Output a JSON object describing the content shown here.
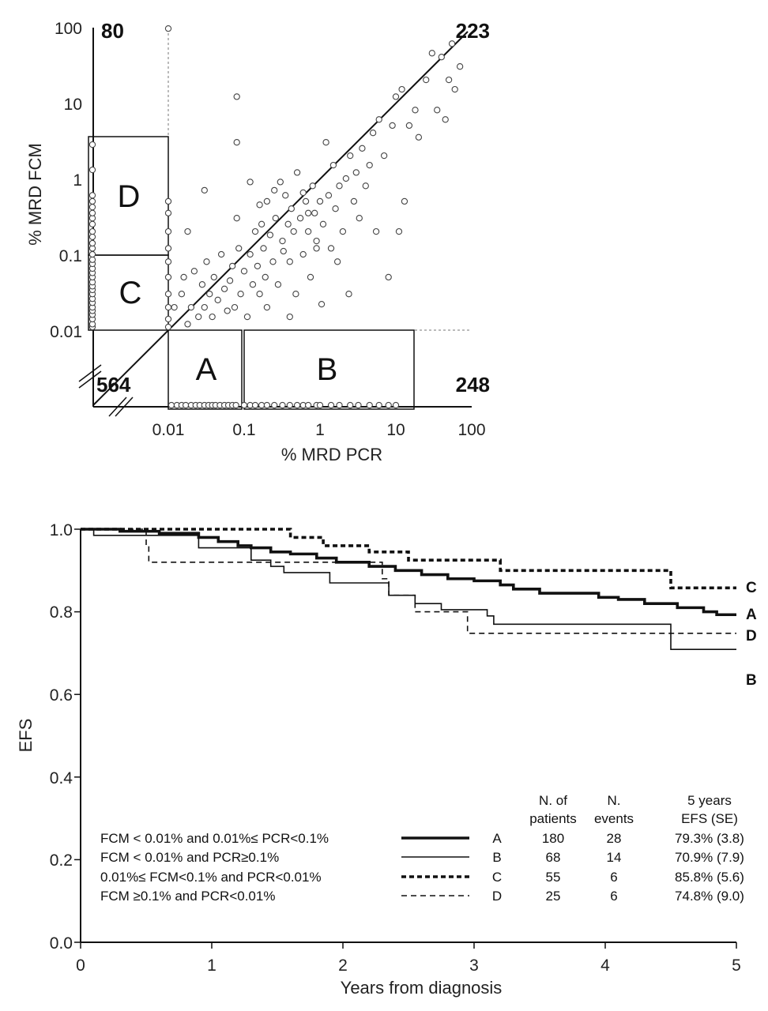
{
  "chart_data": [
    {
      "type": "scatter",
      "xlabel": "% MRD PCR",
      "ylabel": "% MRD FCM",
      "x_scale": "log",
      "y_scale": "log",
      "xlim": [
        0.01,
        100
      ],
      "ylim": [
        0.01,
        100
      ],
      "x_ticks": [
        "0.01",
        "0.1",
        "1",
        "10",
        "100"
      ],
      "y_ticks": [
        "100",
        "10",
        "1",
        "0.1",
        "0.01"
      ],
      "quadrant_counts": {
        "top_left": "80",
        "top_right": "223",
        "bottom_left": "564",
        "bottom_right": "248"
      },
      "boxes": [
        "D",
        "C",
        "A",
        "B"
      ],
      "points": [
        [
          0.012,
          0.02
        ],
        [
          0.015,
          0.03
        ],
        [
          0.016,
          0.05
        ],
        [
          0.018,
          0.012
        ],
        [
          0.02,
          0.02
        ],
        [
          0.022,
          0.06
        ],
        [
          0.025,
          0.015
        ],
        [
          0.028,
          0.04
        ],
        [
          0.03,
          0.02
        ],
        [
          0.032,
          0.08
        ],
        [
          0.035,
          0.03
        ],
        [
          0.038,
          0.015
        ],
        [
          0.04,
          0.05
        ],
        [
          0.045,
          0.025
        ],
        [
          0.05,
          0.1
        ],
        [
          0.055,
          0.035
        ],
        [
          0.06,
          0.018
        ],
        [
          0.065,
          0.045
        ],
        [
          0.07,
          0.07
        ],
        [
          0.075,
          0.02
        ],
        [
          0.08,
          0.3
        ],
        [
          0.085,
          0.12
        ],
        [
          0.09,
          0.03
        ],
        [
          0.1,
          0.06
        ],
        [
          0.11,
          0.015
        ],
        [
          0.12,
          0.1
        ],
        [
          0.13,
          0.04
        ],
        [
          0.14,
          0.2
        ],
        [
          0.15,
          0.07
        ],
        [
          0.16,
          0.03
        ],
        [
          0.17,
          0.25
        ],
        [
          0.18,
          0.12
        ],
        [
          0.19,
          0.05
        ],
        [
          0.2,
          0.5
        ],
        [
          0.22,
          0.18
        ],
        [
          0.24,
          0.08
        ],
        [
          0.26,
          0.3
        ],
        [
          0.28,
          0.04
        ],
        [
          0.3,
          0.9
        ],
        [
          0.32,
          0.15
        ],
        [
          0.35,
          0.6
        ],
        [
          0.38,
          0.25
        ],
        [
          0.4,
          0.08
        ],
        [
          0.42,
          0.4
        ],
        [
          0.45,
          0.2
        ],
        [
          0.48,
          0.03
        ],
        [
          0.5,
          1.2
        ],
        [
          0.55,
          0.3
        ],
        [
          0.6,
          0.1
        ],
        [
          0.65,
          0.5
        ],
        [
          0.7,
          0.2
        ],
        [
          0.75,
          0.05
        ],
        [
          0.8,
          0.8
        ],
        [
          0.85,
          0.35
        ],
        [
          0.9,
          0.15
        ],
        [
          1.0,
          0.5
        ],
        [
          1.1,
          0.25
        ],
        [
          1.2,
          3.0
        ],
        [
          1.3,
          0.6
        ],
        [
          1.4,
          0.12
        ],
        [
          1.5,
          1.5
        ],
        [
          1.6,
          0.4
        ],
        [
          1.8,
          0.8
        ],
        [
          2.0,
          0.2
        ],
        [
          2.2,
          1.0
        ],
        [
          2.5,
          2.0
        ],
        [
          2.8,
          0.5
        ],
        [
          3.0,
          1.2
        ],
        [
          3.3,
          0.3
        ],
        [
          3.6,
          2.5
        ],
        [
          4.0,
          0.8
        ],
        [
          4.5,
          1.5
        ],
        [
          5.0,
          4.0
        ],
        [
          5.5,
          0.2
        ],
        [
          6.0,
          6.0
        ],
        [
          7.0,
          2.0
        ],
        [
          8.0,
          0.05
        ],
        [
          9.0,
          5.0
        ],
        [
          10.0,
          12.0
        ],
        [
          11.0,
          0.2
        ],
        [
          12.0,
          15.0
        ],
        [
          13.0,
          0.5
        ],
        [
          15.0,
          5.0
        ],
        [
          18.0,
          8.0
        ],
        [
          20.0,
          3.5
        ],
        [
          25.0,
          20.0
        ],
        [
          30.0,
          45.0
        ],
        [
          35.0,
          8.0
        ],
        [
          40.0,
          40.0
        ],
        [
          45.0,
          6.0
        ],
        [
          50.0,
          20.0
        ],
        [
          55.0,
          60.0
        ],
        [
          60.0,
          15.0
        ],
        [
          70.0,
          30.0
        ],
        [
          0.08,
          12.0
        ],
        [
          0.08,
          3.0
        ],
        [
          0.03,
          0.7
        ],
        [
          0.018,
          0.2
        ],
        [
          0.4,
          0.015
        ],
        [
          0.2,
          0.02
        ],
        [
          0.12,
          0.9
        ],
        [
          0.25,
          0.7
        ],
        [
          0.6,
          0.65
        ],
        [
          1.7,
          0.08
        ],
        [
          2.4,
          0.03
        ],
        [
          0.9,
          0.12
        ],
        [
          0.7,
          0.35
        ],
        [
          0.33,
          0.11
        ],
        [
          1.05,
          0.022
        ],
        [
          0.16,
          0.45
        ]
      ],
      "points_on_x_axis": [
        0.011,
        0.013,
        0.015,
        0.017,
        0.02,
        0.023,
        0.026,
        0.03,
        0.034,
        0.038,
        0.042,
        0.048,
        0.055,
        0.062,
        0.07,
        0.078,
        0.1,
        0.12,
        0.14,
        0.17,
        0.2,
        0.25,
        0.32,
        0.4,
        0.5,
        0.6,
        0.7,
        0.9,
        1.0,
        1.4,
        1.8,
        2.5,
        3.2,
        4.5,
        6.0,
        8.0,
        10.0
      ],
      "points_on_y_axis": [
        0.011,
        0.012,
        0.014,
        0.016,
        0.018,
        0.02,
        0.023,
        0.026,
        0.03,
        0.034,
        0.038,
        0.043,
        0.05,
        0.057,
        0.065,
        0.075,
        0.085,
        0.1,
        0.12,
        0.14,
        0.17,
        0.2,
        0.25,
        0.3,
        0.35,
        0.42,
        0.5,
        0.6,
        1.3,
        2.8
      ],
      "points_at_fcm_cutoff": [
        0.011,
        0.014,
        0.02,
        0.03,
        0.05,
        0.08,
        0.12,
        0.2,
        0.35,
        0.5,
        95.0
      ]
    },
    {
      "type": "line",
      "title": "",
      "xlabel": "Years from diagnosis",
      "ylabel": "EFS",
      "xlim": [
        0,
        5
      ],
      "ylim": [
        0,
        1
      ],
      "x_ticks": [
        "0",
        "1",
        "2",
        "3",
        "4",
        "5"
      ],
      "y_ticks": [
        "1.0",
        "0.8",
        "0.6",
        "0.4",
        "0.2",
        "0.0"
      ],
      "series": [
        {
          "name": "A",
          "style": "thick-solid",
          "steps": [
            [
              0,
              1.0
            ],
            [
              0.3,
              0.995
            ],
            [
              0.6,
              0.99
            ],
            [
              0.9,
              0.98
            ],
            [
              1.05,
              0.97
            ],
            [
              1.2,
              0.96
            ],
            [
              1.3,
              0.955
            ],
            [
              1.45,
              0.945
            ],
            [
              1.6,
              0.94
            ],
            [
              1.8,
              0.93
            ],
            [
              1.95,
              0.92
            ],
            [
              2.2,
              0.91
            ],
            [
              2.4,
              0.9
            ],
            [
              2.6,
              0.89
            ],
            [
              2.8,
              0.88
            ],
            [
              3.0,
              0.875
            ],
            [
              3.2,
              0.865
            ],
            [
              3.3,
              0.855
            ],
            [
              3.5,
              0.845
            ],
            [
              3.8,
              0.845
            ],
            [
              3.95,
              0.835
            ],
            [
              4.1,
              0.83
            ],
            [
              4.3,
              0.82
            ],
            [
              4.55,
              0.81
            ],
            [
              4.75,
              0.8
            ],
            [
              4.85,
              0.793
            ],
            [
              5.0,
              0.793
            ]
          ]
        },
        {
          "name": "B",
          "style": "solid",
          "steps": [
            [
              0,
              1.0
            ],
            [
              0.1,
              0.985
            ],
            [
              0.85,
              0.985
            ],
            [
              0.9,
              0.955
            ],
            [
              1.25,
              0.955
            ],
            [
              1.3,
              0.925
            ],
            [
              1.45,
              0.91
            ],
            [
              1.55,
              0.895
            ],
            [
              1.85,
              0.895
            ],
            [
              1.9,
              0.87
            ],
            [
              2.3,
              0.87
            ],
            [
              2.35,
              0.84
            ],
            [
              2.55,
              0.82
            ],
            [
              2.7,
              0.82
            ],
            [
              2.75,
              0.805
            ],
            [
              3.05,
              0.805
            ],
            [
              3.1,
              0.79
            ],
            [
              3.15,
              0.77
            ],
            [
              4.5,
              0.77
            ],
            [
              4.5,
              0.709
            ],
            [
              5.0,
              0.709
            ]
          ]
        },
        {
          "name": "C",
          "style": "thick-dotted",
          "steps": [
            [
              0,
              1.0
            ],
            [
              1.6,
              1.0
            ],
            [
              1.6,
              0.98
            ],
            [
              1.8,
              0.98
            ],
            [
              1.85,
              0.96
            ],
            [
              2.15,
              0.96
            ],
            [
              2.2,
              0.945
            ],
            [
              2.45,
              0.945
            ],
            [
              2.5,
              0.925
            ],
            [
              3.15,
              0.925
            ],
            [
              3.2,
              0.9
            ],
            [
              4.45,
              0.9
            ],
            [
              4.5,
              0.858
            ],
            [
              5.0,
              0.858
            ]
          ]
        },
        {
          "name": "D",
          "style": "dashed",
          "steps": [
            [
              0,
              1.0
            ],
            [
              0.5,
              1.0
            ],
            [
              0.5,
              0.96
            ],
            [
              0.52,
              0.96
            ],
            [
              0.52,
              0.92
            ],
            [
              2.3,
              0.92
            ],
            [
              2.3,
              0.88
            ],
            [
              2.35,
              0.88
            ],
            [
              2.35,
              0.84
            ],
            [
              2.55,
              0.84
            ],
            [
              2.55,
              0.8
            ],
            [
              2.95,
              0.8
            ],
            [
              2.95,
              0.748
            ],
            [
              5.0,
              0.748
            ]
          ]
        }
      ],
      "legend": {
        "headers": {
          "patients": "N. of\npatients",
          "events": "N.\nevents",
          "efs": "5 years\nEFS (SE)"
        },
        "rows": [
          {
            "desc": "FCM < 0.01% and 0.01%≤ PCR<0.1%",
            "group": "A",
            "patients": "180",
            "events": "28",
            "efs": "79.3% (3.8)"
          },
          {
            "desc": "FCM < 0.01% and PCR≥0.1%",
            "group": "B",
            "patients": "68",
            "events": "14",
            "efs": "70.9% (7.9)"
          },
          {
            "desc": "0.01%≤ FCM<0.1% and PCR<0.01%",
            "group": "C",
            "patients": "55",
            "events": "6",
            "efs": "85.8% (5.6)"
          },
          {
            "desc": "FCM ≥0.1% and PCR<0.01%",
            "group": "D",
            "patients": "25",
            "events": "6",
            "efs": "74.8% (9.0)"
          }
        ]
      }
    }
  ]
}
